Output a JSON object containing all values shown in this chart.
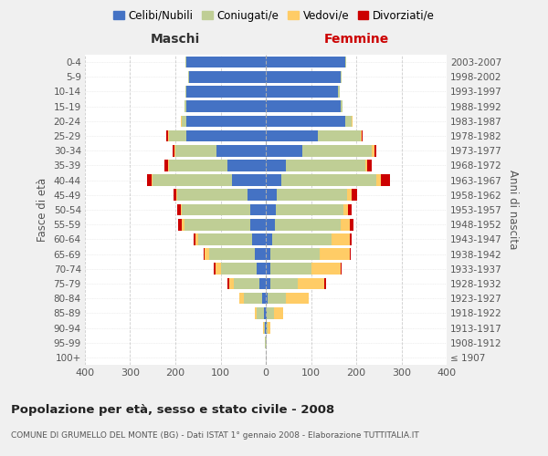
{
  "age_groups": [
    "100+",
    "95-99",
    "90-94",
    "85-89",
    "80-84",
    "75-79",
    "70-74",
    "65-69",
    "60-64",
    "55-59",
    "50-54",
    "45-49",
    "40-44",
    "35-39",
    "30-34",
    "25-29",
    "20-24",
    "15-19",
    "10-14",
    "5-9",
    "0-4"
  ],
  "birth_years": [
    "≤ 1907",
    "1908-1912",
    "1913-1917",
    "1918-1922",
    "1923-1927",
    "1928-1932",
    "1933-1937",
    "1938-1942",
    "1943-1947",
    "1948-1952",
    "1953-1957",
    "1958-1962",
    "1963-1967",
    "1968-1972",
    "1973-1977",
    "1978-1982",
    "1983-1987",
    "1988-1992",
    "1993-1997",
    "1998-2002",
    "2003-2007"
  ],
  "maschi": {
    "celibi": [
      0,
      1,
      2,
      5,
      8,
      15,
      20,
      25,
      30,
      35,
      35,
      40,
      75,
      85,
      110,
      175,
      175,
      175,
      175,
      170,
      175
    ],
    "coniugati": [
      0,
      1,
      3,
      15,
      40,
      55,
      80,
      100,
      120,
      145,
      150,
      155,
      175,
      130,
      90,
      40,
      10,
      5,
      3,
      2,
      2
    ],
    "vedovi": [
      0,
      0,
      2,
      5,
      10,
      10,
      12,
      10,
      5,
      5,
      2,
      2,
      3,
      2,
      2,
      2,
      2,
      0,
      0,
      0,
      0
    ],
    "divorziati": [
      0,
      0,
      0,
      0,
      0,
      5,
      3,
      2,
      5,
      8,
      8,
      8,
      10,
      8,
      5,
      3,
      0,
      0,
      0,
      0,
      0
    ]
  },
  "femmine": {
    "nubili": [
      0,
      1,
      2,
      3,
      5,
      10,
      10,
      10,
      15,
      20,
      22,
      25,
      35,
      45,
      80,
      115,
      175,
      165,
      160,
      165,
      175
    ],
    "coniugate": [
      0,
      1,
      3,
      15,
      40,
      60,
      90,
      110,
      130,
      145,
      150,
      155,
      210,
      175,
      155,
      95,
      15,
      5,
      3,
      2,
      2
    ],
    "vedove": [
      0,
      1,
      5,
      20,
      50,
      60,
      65,
      65,
      40,
      20,
      10,
      10,
      10,
      5,
      5,
      2,
      2,
      0,
      0,
      0,
      0
    ],
    "divorziate": [
      0,
      0,
      0,
      0,
      0,
      3,
      2,
      2,
      5,
      8,
      8,
      12,
      20,
      10,
      5,
      3,
      0,
      0,
      0,
      0,
      0
    ]
  },
  "colors": {
    "celibi": "#4472C4",
    "coniugati": "#BFCE95",
    "vedovi": "#FFCC66",
    "divorziati": "#CC0000"
  },
  "title": "Popolazione per età, sesso e stato civile - 2008",
  "subtitle": "COMUNE DI GRUMELLO DEL MONTE (BG) - Dati ISTAT 1° gennaio 2008 - Elaborazione TUTTITALIA.IT",
  "xlabel_left": "Maschi",
  "xlabel_right": "Femmine",
  "ylabel_left": "Fasce di età",
  "ylabel_right": "Anni di nascita",
  "xlim": 400,
  "bg_color": "#f0f0f0",
  "plot_bg": "#ffffff",
  "legend_labels": [
    "Celibi/Nubili",
    "Coniugati/e",
    "Vedovi/e",
    "Divorziati/e"
  ]
}
